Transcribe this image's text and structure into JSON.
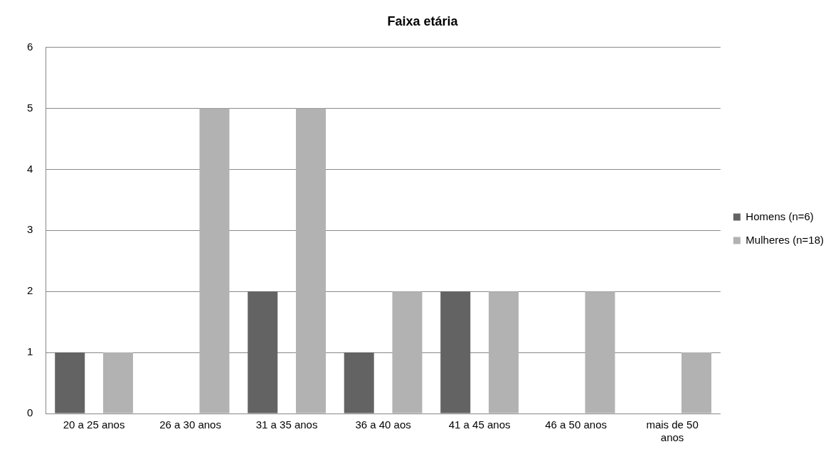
{
  "chart_data": {
    "type": "bar",
    "title": "Faixa etária",
    "categories": [
      "20 a 25 anos",
      "26 a 30 anos",
      "31 a 35 anos",
      "36 a 40 aos",
      "41 a 45 anos",
      "46 a 50 anos",
      "mais de 50 anos"
    ],
    "series": [
      {
        "name": "Homens (n=6)",
        "color": "#636363",
        "values": [
          1,
          0,
          2,
          1,
          2,
          0,
          0
        ]
      },
      {
        "name": "Mulheres (n=18)",
        "color": "#b2b2b2",
        "values": [
          1,
          5,
          5,
          2,
          2,
          2,
          1
        ]
      }
    ],
    "ylim": [
      0,
      6
    ],
    "yticks": [
      0,
      1,
      2,
      3,
      4,
      5,
      6
    ],
    "grid": "y",
    "legend": "right"
  }
}
